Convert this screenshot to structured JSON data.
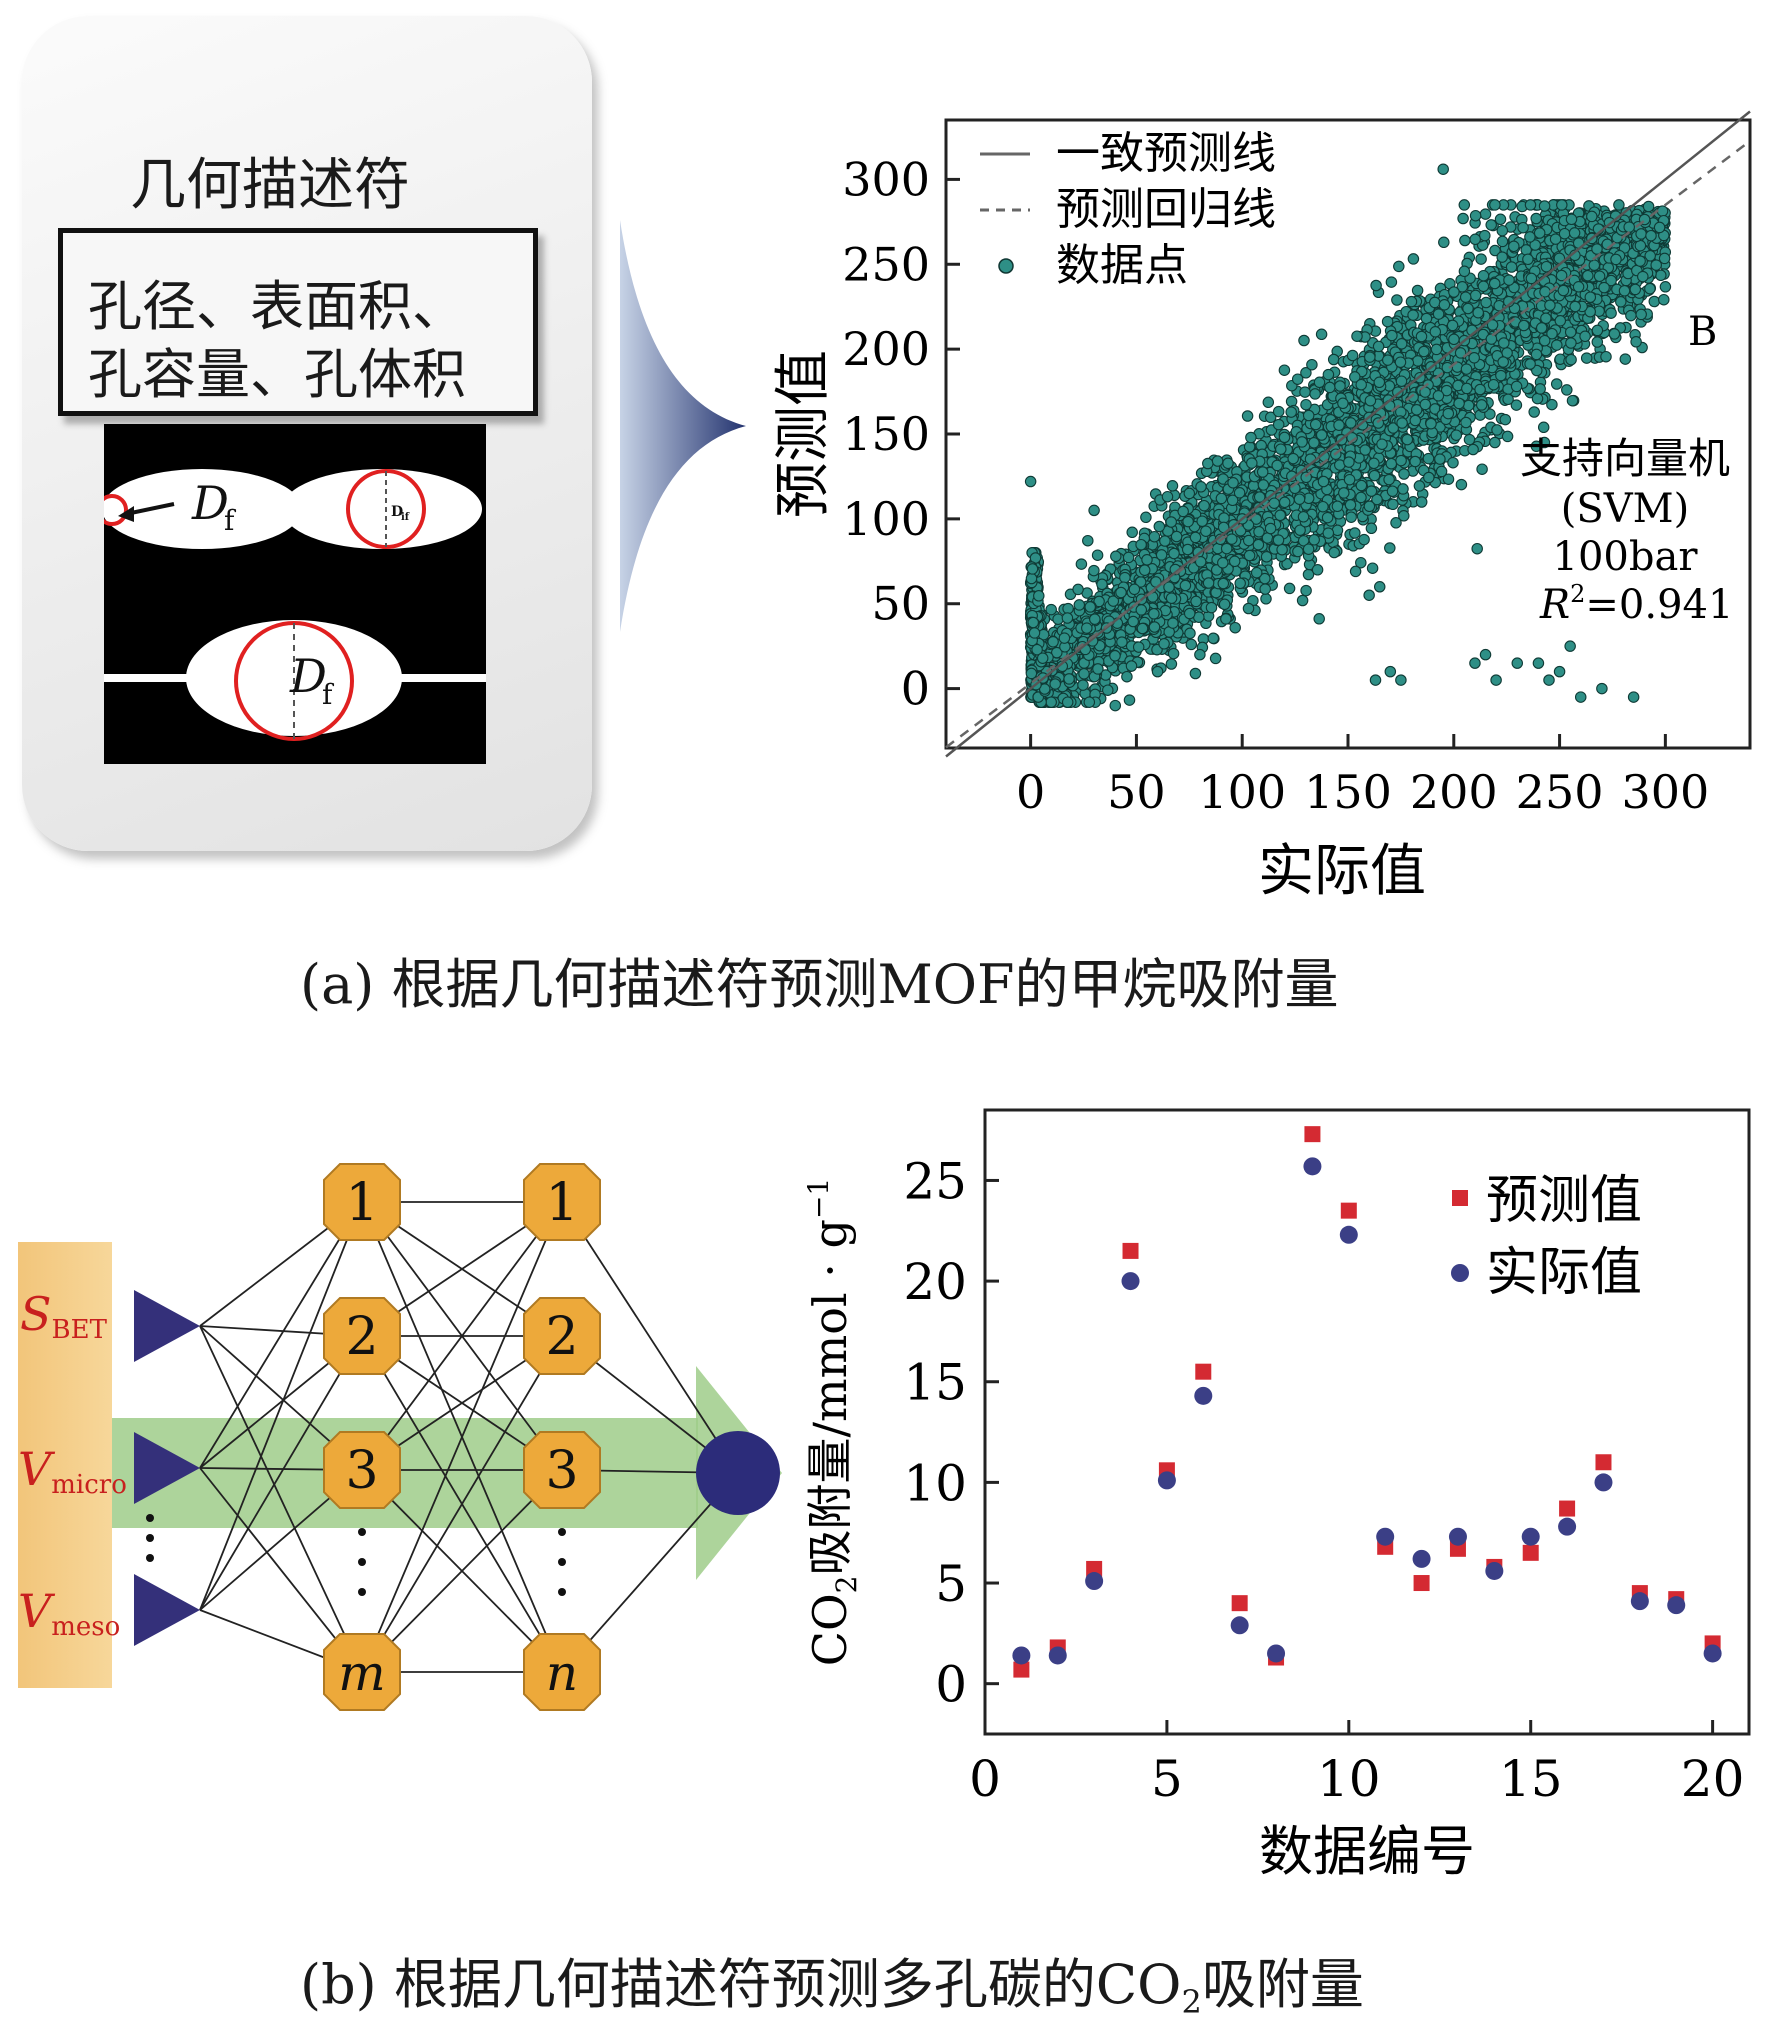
{
  "panel_a": {
    "descriptor_title": "几何描述符",
    "descriptor_line1": "孔径、表面积、",
    "descriptor_line2": "孔容量、孔体积",
    "pore_label_df": "D",
    "pore_label_sub": "f",
    "pore_small_label": "D",
    "pore_small_sub": "if",
    "caption": "(a) 根据几何描述符预测MOF的甲烷吸附量"
  },
  "panel_b": {
    "inputs": [
      {
        "main": "S",
        "sub": "BET"
      },
      {
        "main": "V",
        "sub": "micro"
      },
      {
        "main": "V",
        "sub": "meso"
      }
    ],
    "layer1": [
      "1",
      "2",
      "3",
      "m"
    ],
    "layer2": [
      "1",
      "2",
      "3",
      "n"
    ],
    "caption_pre": "(b) 根据几何描述符预测多孔碳的CO",
    "caption_sub": "2",
    "caption_post": "吸附量"
  },
  "chart_data": [
    {
      "type": "scatter",
      "xlabel": "实际值",
      "ylabel": "预测值",
      "xlim": [
        -40,
        340
      ],
      "ylim": [
        -35,
        335
      ],
      "xticks": [
        0,
        50,
        100,
        150,
        200,
        250,
        300
      ],
      "yticks": [
        0,
        50,
        100,
        150,
        200,
        250,
        300
      ],
      "legend": [
        "一致预测线",
        "预测回归线",
        "数据点"
      ],
      "legend_position": "top-left",
      "panel_label": "B",
      "annotation": [
        "支持向量机",
        "(SVM)",
        "100bar",
        "R²=0.941"
      ],
      "annotation_r": "R",
      "annotation_sup": "2",
      "annotation_val": "=0.941",
      "regression": {
        "slope": 0.94,
        "intercept": 3
      },
      "density_band": {
        "x_range": [
          0,
          300
        ],
        "spread": 28
      },
      "outliers": [
        [
          0,
          122
        ],
        [
          30,
          105
        ],
        [
          75,
          115
        ],
        [
          100,
          100
        ],
        [
          110,
          120
        ],
        [
          120,
          148
        ],
        [
          195,
          306
        ],
        [
          180,
          228
        ],
        [
          205,
          205
        ],
        [
          160,
          55
        ],
        [
          165,
          60
        ],
        [
          170,
          10
        ],
        [
          175,
          5
        ],
        [
          163,
          5
        ],
        [
          210,
          15
        ],
        [
          215,
          20
        ],
        [
          220,
          5
        ],
        [
          230,
          15
        ],
        [
          240,
          15
        ],
        [
          245,
          5
        ],
        [
          250,
          10
        ],
        [
          255,
          25
        ],
        [
          260,
          -5
        ],
        [
          270,
          0
        ],
        [
          285,
          -5
        ],
        [
          40,
          -10
        ],
        [
          60,
          10
        ],
        [
          80,
          20
        ]
      ]
    },
    {
      "type": "scatter",
      "xlabel": "数据编号",
      "ylabel_pre": "CO",
      "ylabel_sub": "2",
      "ylabel_post": "吸附量/mmol · g",
      "ylabel_sup": "−1",
      "xlim": [
        0,
        21
      ],
      "ylim": [
        -2.5,
        28.5
      ],
      "xticks": [
        0,
        5,
        10,
        15,
        20
      ],
      "yticks": [
        0,
        5,
        10,
        15,
        20,
        25
      ],
      "legend_position": "top-right",
      "series": [
        {
          "name": "预测值",
          "color": "#d42a32",
          "marker": "square",
          "x": [
            1,
            2,
            3,
            4,
            5,
            6,
            7,
            8,
            9,
            10,
            11,
            12,
            13,
            14,
            15,
            16,
            17,
            18,
            19,
            20
          ],
          "y": [
            0.7,
            1.8,
            5.7,
            21.5,
            10.6,
            15.5,
            4.0,
            1.3,
            27.3,
            23.5,
            6.8,
            5.0,
            6.7,
            5.8,
            6.5,
            8.7,
            11.0,
            4.5,
            4.2,
            2.0
          ]
        },
        {
          "name": "实际值",
          "color": "#3b3f86",
          "marker": "circle",
          "x": [
            1,
            2,
            3,
            4,
            5,
            6,
            7,
            8,
            9,
            10,
            11,
            12,
            13,
            14,
            15,
            16,
            17,
            18,
            19,
            20
          ],
          "y": [
            1.4,
            1.4,
            5.1,
            20.0,
            10.1,
            14.3,
            2.9,
            1.5,
            25.7,
            22.3,
            7.3,
            6.2,
            7.3,
            5.6,
            7.3,
            7.8,
            10.0,
            4.1,
            3.9,
            1.5
          ]
        }
      ]
    }
  ]
}
